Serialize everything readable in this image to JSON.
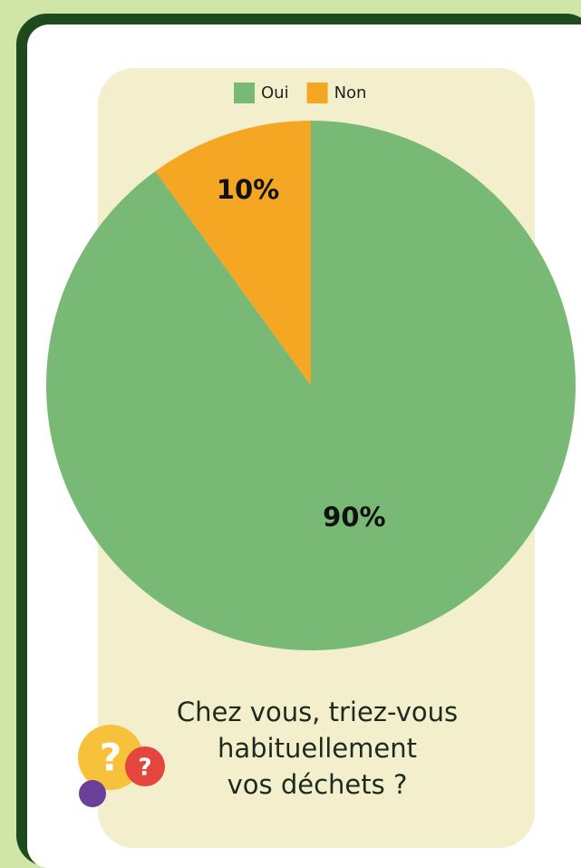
{
  "chart_data": {
    "type": "pie",
    "title": "Chez vous, triez-vous\nhabituellement\nvos déchets ?",
    "categories": [
      "Oui",
      "Non"
    ],
    "values": [
      90,
      10
    ],
    "value_labels": [
      "90%",
      "10%"
    ],
    "colors": [
      "#77b975",
      "#f5a623"
    ],
    "legend": "top"
  }
}
